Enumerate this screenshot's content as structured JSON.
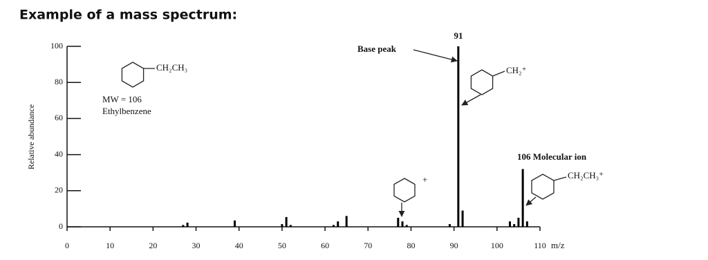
{
  "chart_data": {
    "type": "bar",
    "title": "Example of a mass spectrum:",
    "x_label": "m/z",
    "y_label": "Relative abundance",
    "x": [
      27,
      28,
      39,
      50,
      51,
      52,
      62,
      63,
      65,
      77,
      78,
      79,
      89,
      91,
      92,
      103,
      104,
      105,
      106,
      107
    ],
    "values": [
      1,
      2.3,
      3.5,
      1.5,
      5.4,
      1,
      1,
      3,
      6,
      5,
      3,
      1,
      1.5,
      100,
      9,
      3,
      1.5,
      5,
      32,
      3
    ],
    "color": "#000000",
    "xlim": [
      0,
      110
    ],
    "xticks": [
      0,
      10,
      20,
      30,
      40,
      50,
      60,
      70,
      80,
      90,
      100,
      110
    ],
    "ylim": [
      0,
      100
    ],
    "yticks": [
      0,
      20,
      40,
      60,
      80,
      100
    ],
    "annotations": [
      "Base peak",
      "91",
      "CH₂CH₃",
      "MW = 106",
      "Ethylbenzene",
      "CH₂⁺",
      "+",
      "106 Molecular ion",
      "CH₂CH₃⁺"
    ]
  }
}
